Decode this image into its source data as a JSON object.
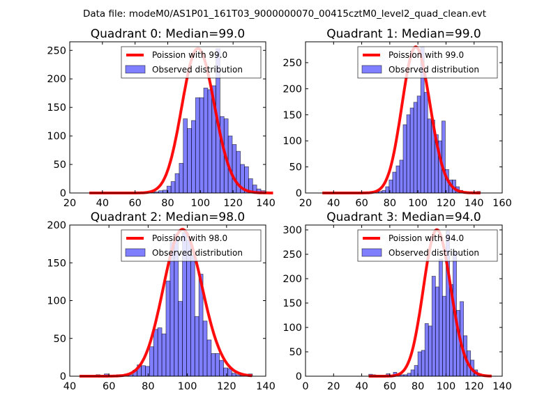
{
  "suptitle": "Data file: modeM0/AS1P01_161T03_9000000070_00415cztM0_level2_quad_clean.evt",
  "colors": {
    "poisson": "#ff0000",
    "bars": "#0000ff",
    "bar_alpha": 0.5,
    "legend_border": "#000000"
  },
  "chart_data": [
    {
      "type": "bar",
      "title": "Quadrant 0: Median=99.0",
      "xlim": [
        20,
        140
      ],
      "ylim": [
        0,
        265
      ],
      "xticks": [
        20,
        40,
        60,
        80,
        100,
        120,
        140
      ],
      "yticks": [
        0,
        50,
        100,
        150,
        200,
        250
      ],
      "legend": [
        "Poission with 99.0",
        "Observed distribution"
      ],
      "legend_position": "upper-right",
      "bin_start": 32,
      "bin_width": 2.5,
      "values": [
        0,
        0,
        0,
        0,
        0,
        0,
        0,
        0,
        0,
        1,
        0,
        0,
        0,
        0,
        0,
        1,
        2,
        4,
        5,
        12,
        20,
        34,
        52,
        130,
        113,
        127,
        167,
        167,
        184,
        181,
        188,
        253,
        134,
        130,
        100,
        85,
        73,
        50,
        46,
        25,
        14,
        7,
        4,
        1,
        0
      ],
      "poisson_mean": 99.0,
      "poisson_scale": 253
    },
    {
      "type": "bar",
      "title": "Quadrant 1: Median=99.0",
      "xlim": [
        20,
        160
      ],
      "ylim": [
        0,
        290
      ],
      "xticks": [
        20,
        40,
        60,
        80,
        100,
        120,
        140,
        160
      ],
      "yticks": [
        0,
        50,
        100,
        150,
        200,
        250
      ],
      "legend": [
        "Poission with 99.0",
        "Observed distribution"
      ],
      "legend_position": "upper-right",
      "bin_start": 32,
      "bin_width": 2.5,
      "values": [
        0,
        0,
        0,
        0,
        0,
        0,
        0,
        0,
        0,
        0,
        0,
        0,
        0,
        0,
        1,
        2,
        3,
        5,
        12,
        25,
        40,
        52,
        63,
        131,
        150,
        163,
        174,
        186,
        280,
        193,
        142,
        140,
        112,
        100,
        138,
        45,
        25,
        25,
        12,
        5,
        2,
        0,
        1,
        1,
        3
      ],
      "poisson_mean": 99.0,
      "poisson_scale": 280
    },
    {
      "type": "bar",
      "title": "Quadrant 2: Median=98.0",
      "xlim": [
        40,
        140
      ],
      "ylim": [
        0,
        200
      ],
      "xticks": [
        40,
        60,
        80,
        100,
        120,
        140
      ],
      "yticks": [
        0,
        50,
        100,
        150,
        200
      ],
      "legend": [
        "Poission with 98.0",
        "Observed distribution"
      ],
      "legend_position": "upper-right",
      "bin_start": 45,
      "bin_width": 2.1,
      "values": [
        0,
        0,
        0,
        0,
        2,
        0,
        3,
        0,
        0,
        2,
        0,
        2,
        2,
        8,
        15,
        14,
        13,
        39,
        62,
        64,
        56,
        126,
        177,
        188,
        99,
        190,
        180,
        160,
        79,
        135,
        73,
        48,
        30,
        30,
        21,
        11,
        10,
        4,
        2,
        1,
        0,
        3
      ],
      "poisson_mean": 98.0,
      "poisson_scale": 194
    },
    {
      "type": "bar",
      "title": "Quadrant 3: Median=94.0",
      "xlim": [
        0,
        140
      ],
      "ylim": [
        0,
        310
      ],
      "xticks": [
        0,
        20,
        40,
        60,
        80,
        100,
        120,
        140
      ],
      "yticks": [
        0,
        50,
        100,
        150,
        200,
        250,
        300
      ],
      "legend": [
        "Poission with 94.0",
        "Observed distribution"
      ],
      "legend_position": "upper-right",
      "bin_start": 45,
      "bin_width": 2.5,
      "values": [
        4,
        3,
        0,
        0,
        0,
        5,
        0,
        8,
        5,
        3,
        3,
        6,
        13,
        22,
        50,
        53,
        108,
        103,
        205,
        183,
        240,
        164,
        298,
        188,
        256,
        135,
        153,
        83,
        52,
        33,
        13,
        5,
        2,
        1,
        0
      ],
      "poisson_mean": 94.0,
      "poisson_scale": 300
    }
  ]
}
